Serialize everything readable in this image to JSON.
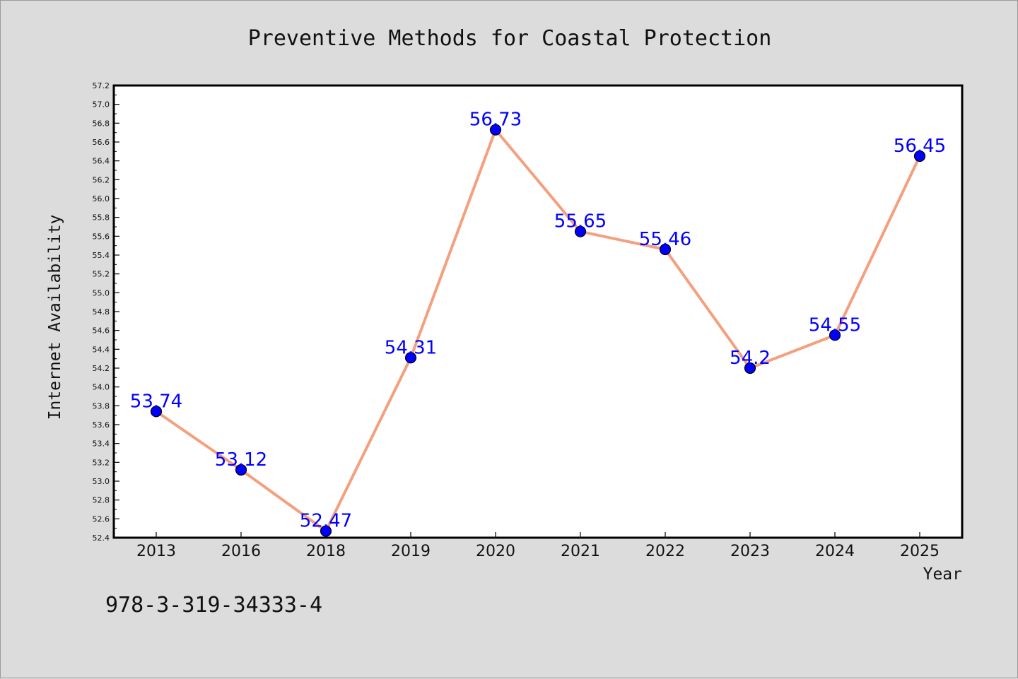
{
  "chart_data": {
    "type": "line",
    "title": "Preventive Methods for Coastal Protection",
    "xlabel": "Year",
    "ylabel": "Internet Availability",
    "categories": [
      "2013",
      "2016",
      "2018",
      "2019",
      "2020",
      "2021",
      "2022",
      "2023",
      "2024",
      "2025"
    ],
    "values": [
      53.74,
      53.12,
      52.47,
      54.31,
      56.73,
      55.65,
      55.46,
      54.2,
      54.55,
      56.45
    ],
    "data_labels": [
      "53.74",
      "53.12",
      "52.47",
      "54.31",
      "56.73",
      "55.65",
      "55.46",
      "54.2",
      "54.55",
      "56.45"
    ],
    "ylim": [
      52.4,
      57.2
    ],
    "yticks": [
      "52.4",
      "52.6",
      "52.8",
      "53.0",
      "53.2",
      "53.4",
      "53.6",
      "53.8",
      "54.0",
      "54.2",
      "54.4",
      "54.6",
      "54.8",
      "55.0",
      "55.2",
      "55.4",
      "55.6",
      "55.8",
      "56.0",
      "56.2",
      "56.4",
      "56.6",
      "56.8",
      "57.0",
      "57.2"
    ],
    "grid": false,
    "line_color": "#f4a07e",
    "marker_color": "#0000ff",
    "label_color": "#0000ff"
  },
  "footer": {
    "isbn": "978-3-319-34333-4"
  }
}
